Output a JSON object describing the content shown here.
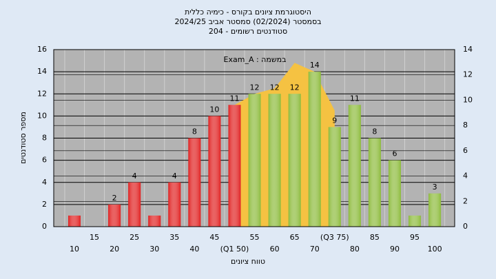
{
  "chart_data": {
    "type": "bar",
    "title_lines": [
      "היסטוגרמת ציונים בקורס - כימיה כללית",
      "בסמסטר  (02/2024)  סמסטר אביב 2024/25",
      "סטודנטים רשומים - 204"
    ],
    "xlabel": "טווח ציונים",
    "ylabel": "מספר סטודנטים",
    "annotation": "Exam_A : במשמה",
    "categories": [
      "10",
      "15",
      "20",
      "25",
      "30",
      "35",
      "40",
      "45",
      "(Q1 50)",
      "55",
      "60",
      "65",
      "70",
      "(Q3 75)",
      "80",
      "85",
      "90",
      "95",
      "100"
    ],
    "values": [
      1,
      0,
      2,
      4,
      1,
      4,
      8,
      10,
      11,
      12,
      12,
      12,
      14,
      9,
      11,
      8,
      6,
      1,
      3
    ],
    "value_labels": [
      null,
      null,
      "2",
      "4",
      null,
      "4",
      "8",
      "10",
      "11",
      "12",
      "12",
      "12",
      "14",
      "9",
      "11",
      "8",
      "6",
      null,
      "3"
    ],
    "colors": [
      "#e02020",
      "#e02020",
      "#e02020",
      "#e02020",
      "#e02020",
      "#e02020",
      "#e02020",
      "#e02020",
      "#e02020",
      "#8dbb3c",
      "#8dbb3c",
      "#8dbb3c",
      "#8dbb3c",
      "#8dbb3c",
      "#8dbb3c",
      "#8dbb3c",
      "#8dbb3c",
      "#8dbb3c",
      "#8dbb3c"
    ],
    "area": {
      "color": "#f5c242",
      "x": [
        50,
        55,
        60,
        65,
        70,
        75
      ],
      "values": [
        11,
        12,
        12.5,
        14.8,
        14,
        10.5
      ]
    },
    "ylim": [
      0,
      16
    ],
    "yticks": [
      0,
      2,
      4,
      6,
      8,
      10,
      12,
      14,
      16
    ],
    "y2lim": [
      0,
      14
    ],
    "y2ticks": [
      0,
      2,
      4,
      6,
      8,
      10,
      12,
      14
    ],
    "grid": true
  }
}
